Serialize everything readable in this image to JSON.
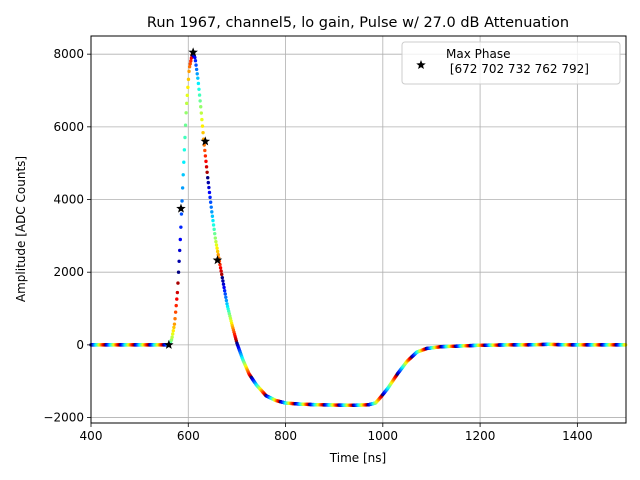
{
  "chart_data": {
    "type": "scatter",
    "title": "Run 1967, channel5, lo gain, Pulse w/ 27.0 dB Attenuation",
    "xlabel": "Time [ns]",
    "ylabel": "Amplitude [ADC Counts]",
    "xlim": [
      400,
      1500
    ],
    "ylim": [
      -2150,
      8500
    ],
    "xticks": [
      400,
      600,
      800,
      1000,
      1200,
      1400
    ],
    "yticks": [
      -2000,
      0,
      2000,
      4000,
      6000,
      8000
    ],
    "grid": true,
    "legend_position": "top-right",
    "colormap": "jet",
    "pulse_shape": [
      [
        400,
        0
      ],
      [
        540,
        0
      ],
      [
        560,
        0
      ],
      [
        566,
        150
      ],
      [
        572,
        600
      ],
      [
        578,
        1500
      ],
      [
        584,
        3000
      ],
      [
        590,
        4800
      ],
      [
        596,
        6500
      ],
      [
        602,
        7600
      ],
      [
        608,
        8000
      ],
      [
        614,
        7900
      ],
      [
        620,
        7300
      ],
      [
        626,
        6500
      ],
      [
        632,
        5600
      ],
      [
        640,
        4600
      ],
      [
        648,
        3700
      ],
      [
        656,
        2900
      ],
      [
        664,
        2300
      ],
      [
        672,
        1700
      ],
      [
        680,
        1100
      ],
      [
        690,
        550
      ],
      [
        700,
        50
      ],
      [
        712,
        -400
      ],
      [
        725,
        -800
      ],
      [
        740,
        -1100
      ],
      [
        760,
        -1400
      ],
      [
        780,
        -1530
      ],
      [
        800,
        -1600
      ],
      [
        830,
        -1630
      ],
      [
        870,
        -1650
      ],
      [
        900,
        -1655
      ],
      [
        940,
        -1660
      ],
      [
        970,
        -1650
      ],
      [
        985,
        -1600
      ],
      [
        995,
        -1450
      ],
      [
        1010,
        -1200
      ],
      [
        1030,
        -800
      ],
      [
        1050,
        -450
      ],
      [
        1070,
        -200
      ],
      [
        1090,
        -100
      ],
      [
        1120,
        -50
      ],
      [
        1160,
        -30
      ],
      [
        1200,
        -10
      ],
      [
        1260,
        0
      ],
      [
        1300,
        0
      ],
      [
        1340,
        15
      ],
      [
        1380,
        0
      ],
      [
        1440,
        0
      ],
      [
        1500,
        0
      ]
    ],
    "series": [
      {
        "name": "Max Phase\n [672 702 732 762 792]",
        "marker": "star",
        "color": "#000000",
        "x": [
          560,
          585,
          610,
          635,
          660
        ],
        "y": [
          0,
          3750,
          8050,
          5600,
          2330
        ]
      }
    ]
  }
}
